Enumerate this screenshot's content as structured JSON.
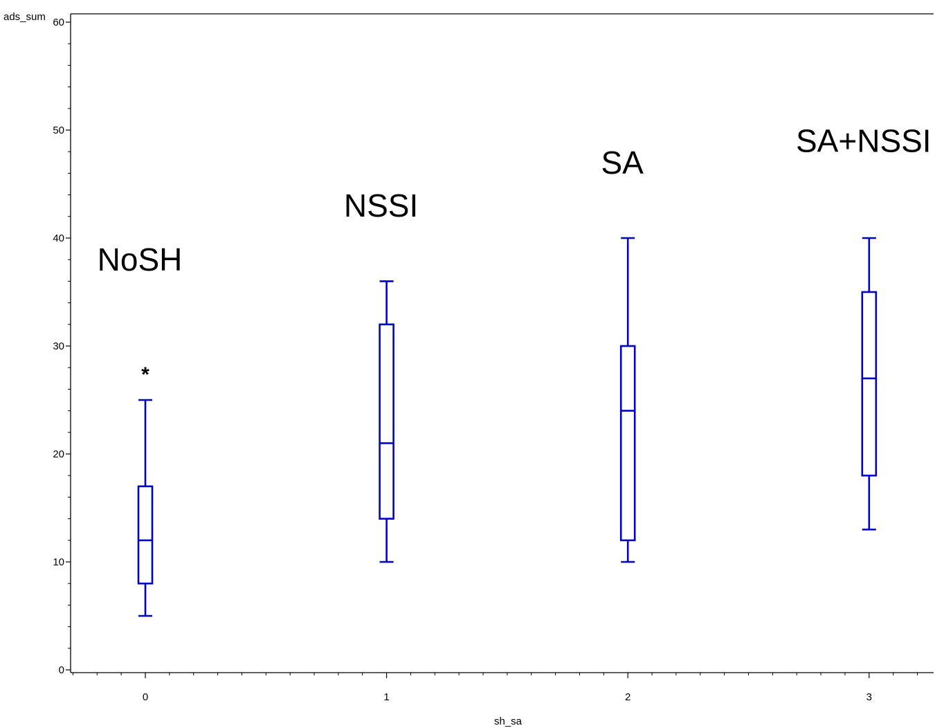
{
  "chart_data": {
    "type": "box",
    "xlabel": "sh_sa",
    "ylabel": "ads_sum",
    "xlim": [
      -0.31,
      3.28
    ],
    "ylim": [
      0,
      60
    ],
    "x_ticks": [
      "0",
      "1",
      "2",
      "3"
    ],
    "y_ticks": [
      "0",
      "10",
      "20",
      "30",
      "40",
      "50",
      "60"
    ],
    "box_color": "#0000cc",
    "groups": [
      {
        "x": 0,
        "label": "NoSH",
        "label_y": 38,
        "whisker_low": 5,
        "q1": 8,
        "median": 12,
        "q3": 17,
        "whisker_high": 25,
        "outliers": [
          28
        ]
      },
      {
        "x": 1,
        "label": "NSSI",
        "label_y": 43,
        "whisker_low": 10,
        "q1": 14,
        "median": 21,
        "q3": 32,
        "whisker_high": 36,
        "outliers": []
      },
      {
        "x": 2,
        "label": "SA",
        "label_y": 47,
        "whisker_low": 10,
        "q1": 12,
        "median": 24,
        "q3": 30,
        "whisker_high": 40,
        "outliers": []
      },
      {
        "x": 3,
        "label": "SA+NSSI",
        "label_y": 49,
        "whisker_low": 13,
        "q1": 18,
        "median": 27,
        "q3": 35,
        "whisker_high": 40,
        "outliers": []
      }
    ]
  }
}
